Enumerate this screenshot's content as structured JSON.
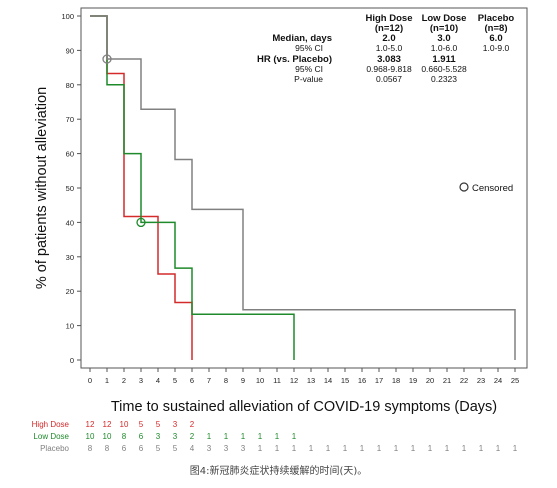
{
  "chart_data": {
    "type": "line",
    "step": true,
    "title": "",
    "xlabel": "Time to sustained alleviation of COVID-19 symptoms (Days)",
    "ylabel": "% of patients without alleviation",
    "xlim": [
      0,
      25
    ],
    "ylim": [
      0,
      100
    ],
    "xticks": [
      "0",
      "1",
      "2",
      "3",
      "4",
      "5",
      "6",
      "7",
      "8",
      "9",
      "10",
      "11",
      "12",
      "13",
      "14",
      "15",
      "16",
      "17",
      "18",
      "19",
      "20",
      "21",
      "22",
      "23",
      "24",
      "25"
    ],
    "yticks": [
      "0",
      "10",
      "20",
      "30",
      "40",
      "50",
      "60",
      "70",
      "80",
      "90",
      "100"
    ],
    "grid": false,
    "series": [
      {
        "name": "High Dose",
        "color": "#d42a2a",
        "x": [
          0,
          1,
          2,
          3,
          4,
          5,
          6,
          6
        ],
        "y": [
          100,
          83.3,
          41.7,
          41.7,
          25,
          16.7,
          16.7,
          0
        ],
        "censored": []
      },
      {
        "name": "Low Dose",
        "color": "#1f8a2b",
        "x": [
          0,
          1,
          2,
          3,
          4,
          5,
          6,
          12,
          12
        ],
        "y": [
          100,
          80,
          60,
          40,
          40,
          26.7,
          13.3,
          13.3,
          0
        ],
        "censored": [
          {
            "x": 3,
            "y": 40
          }
        ]
      },
      {
        "name": "Placebo",
        "color": "#808080",
        "x": [
          0,
          1,
          2,
          3,
          4,
          5,
          6,
          9,
          25,
          25
        ],
        "y": [
          100,
          87.5,
          87.5,
          72.9,
          72.9,
          58.3,
          43.8,
          14.6,
          14.6,
          0
        ],
        "censored": [
          {
            "x": 1,
            "y": 87.5
          }
        ]
      }
    ],
    "legend": {
      "censored_label": "Censored",
      "placement": "right"
    },
    "stats_table": {
      "headers": [
        {
          "line1": "High Dose",
          "line2": "(n=12)"
        },
        {
          "line1": "Low Dose",
          "line2": "(n=10)"
        },
        {
          "line1": "Placebo",
          "line2": "(n=8)"
        }
      ],
      "rows": [
        {
          "label": "Median, days",
          "bold": true,
          "indent": false,
          "values": [
            "2.0",
            "3.0",
            "6.0"
          ]
        },
        {
          "label": "95% CI",
          "bold": false,
          "indent": true,
          "values": [
            "1.0-5.0",
            "1.0-6.0",
            "1.0-9.0"
          ]
        },
        {
          "label": "HR (vs. Placebo)",
          "bold": true,
          "indent": false,
          "values": [
            "3.083",
            "1.911",
            ""
          ]
        },
        {
          "label": "95% CI",
          "bold": false,
          "indent": true,
          "values": [
            "0.968-9.818",
            "0.660-5.528",
            ""
          ]
        },
        {
          "label": "P-value",
          "bold": false,
          "indent": true,
          "values": [
            "0.0567",
            "0.2323",
            ""
          ]
        }
      ]
    },
    "at_risk": [
      {
        "name": "High Dose",
        "color": "#d42a2a",
        "counts": [
          "12",
          "12",
          "10",
          "5",
          "5",
          "3",
          "2"
        ]
      },
      {
        "name": "Low Dose",
        "color": "#1f8a2b",
        "counts": [
          "10",
          "10",
          "8",
          "6",
          "3",
          "3",
          "2",
          "1",
          "1",
          "1",
          "1",
          "1",
          "1"
        ]
      },
      {
        "name": "Placebo",
        "color": "#808080",
        "counts": [
          "8",
          "8",
          "6",
          "6",
          "5",
          "5",
          "4",
          "3",
          "3",
          "3",
          "1",
          "1",
          "1",
          "1",
          "1",
          "1",
          "1",
          "1",
          "1",
          "1",
          "1",
          "1",
          "1",
          "1",
          "1",
          "1"
        ]
      }
    ]
  },
  "caption": "图4:新冠肺炎症状持续缓解的时间(天)。"
}
